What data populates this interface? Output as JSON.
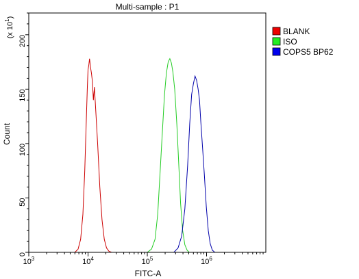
{
  "chart_data": {
    "type": "line",
    "title": "Multi-sample : P1",
    "xlabel": "FITC-A",
    "ylabel": "Count",
    "y_multiplier": "(x 10",
    "y_multiplier_exp": "1",
    "y_multiplier_close": ")",
    "x_scale": "log",
    "xlim": [
      1000,
      10000000
    ],
    "ylim": [
      0,
      220
    ],
    "x_ticks": [
      {
        "value": 1000,
        "base": "10",
        "exp": "3"
      },
      {
        "value": 10000,
        "base": "10",
        "exp": "4"
      },
      {
        "value": 100000,
        "base": "10",
        "exp": "5"
      },
      {
        "value": 1000000,
        "base": "10",
        "exp": "6"
      }
    ],
    "y_ticks": [
      {
        "value": 0,
        "label": "0"
      },
      {
        "value": 50,
        "label": "50"
      },
      {
        "value": 100,
        "label": "100"
      },
      {
        "value": 150,
        "label": "150"
      },
      {
        "value": 200,
        "label": "200"
      }
    ],
    "grid": false,
    "legend_position": "right",
    "series": [
      {
        "name": "BLANK",
        "color": "#cc0000",
        "legend_color": "#ee0000",
        "x": [
          6000,
          6800,
          7500,
          8200,
          8800,
          9300,
          9700,
          10000,
          10300,
          10600,
          11000,
          11400,
          11800,
          12300,
          12800,
          13500,
          14500,
          15800,
          17200,
          18800,
          20500,
          22500,
          25000
        ],
        "y": [
          0,
          3,
          12,
          35,
          75,
          118,
          150,
          168,
          172,
          178,
          170,
          165,
          158,
          140,
          152,
          130,
          100,
          60,
          30,
          12,
          4,
          1,
          0
        ]
      },
      {
        "name": "ISO",
        "color": "#22cc22",
        "legend_color": "#22ee22",
        "x": [
          100000,
          118000,
          135000,
          150000,
          165000,
          180000,
          195000,
          210000,
          225000,
          240000,
          255000,
          270000,
          290000,
          315000,
          340000,
          365000,
          395000,
          430000,
          470000,
          510000
        ],
        "y": [
          0,
          3,
          12,
          35,
          75,
          112,
          145,
          165,
          175,
          178,
          174,
          166,
          150,
          118,
          80,
          45,
          20,
          7,
          2,
          0
        ]
      },
      {
        "name": "COPS5 BP62",
        "color": "#0000aa",
        "legend_color": "#0000ee",
        "x": [
          280000,
          330000,
          380000,
          430000,
          480000,
          520000,
          560000,
          600000,
          640000,
          680000,
          720000,
          760000,
          800000,
          860000,
          920000,
          990000,
          1070000,
          1150000,
          1250000,
          1380000
        ],
        "y": [
          0,
          4,
          15,
          40,
          80,
          118,
          145,
          155,
          162,
          158,
          150,
          140,
          120,
          95,
          70,
          42,
          20,
          8,
          2,
          0
        ]
      }
    ]
  }
}
